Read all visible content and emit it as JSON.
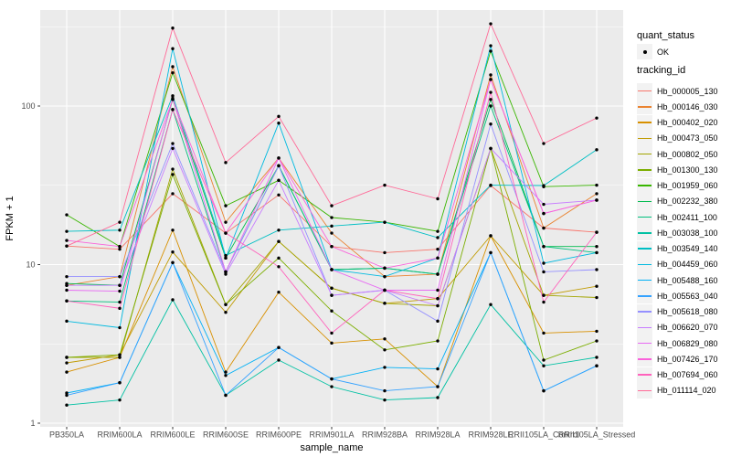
{
  "chart_data": {
    "type": "line",
    "title": "",
    "xlabel": "sample_name",
    "ylabel": "FPKM + 1",
    "y_scale": "log10",
    "y_ticks": [
      1,
      10,
      100
    ],
    "y_minor_ticks": [
      3.1623,
      31.623,
      316.23
    ],
    "ylim": [
      1,
      400
    ],
    "grid": "major+minor, white on grey panel",
    "legend_position": "right",
    "panel_bg": "#EBEBEB",
    "grid_color": "#FFFFFF",
    "key_bg": "#F2F2F2",
    "tick_text_color": "#4D4D4D",
    "point_color": "#000000",
    "categories": [
      "PB350LA",
      "RRIM600LA",
      "RRIM600LE",
      "RRIM600SE",
      "RRIM600PE",
      "RRIM901LA",
      "RRIM928BA",
      "RRIM928LA",
      "RRIM928LE",
      "RRII105LA_Control",
      "RRII105LA_Stressed"
    ],
    "series": [
      {
        "name": "Hb_000005_130",
        "color": "#F8766D",
        "values": [
          13.1,
          12.5,
          28,
          15.8,
          27.5,
          13,
          11.9,
          12.5,
          31.5,
          17,
          16
        ]
      },
      {
        "name": "Hb_000146_030",
        "color": "#EA8331",
        "values": [
          7.4,
          8.4,
          177,
          18.5,
          47,
          15.8,
          8.4,
          8.7,
          157,
          17,
          28
        ]
      },
      {
        "name": "Hb_000402_020",
        "color": "#D89000",
        "values": [
          2.1,
          2.6,
          16.5,
          2.1,
          6.7,
          3.2,
          3.4,
          1.7,
          15.2,
          3.7,
          3.8
        ]
      },
      {
        "name": "Hb_000473_050",
        "color": "#C09B00",
        "values": [
          2.4,
          2.7,
          12,
          5.0,
          14,
          7.1,
          5.7,
          6.1,
          15.2,
          6.4,
          7.3
        ]
      },
      {
        "name": "Hb_000802_050",
        "color": "#A3A500",
        "values": [
          2.6,
          2.6,
          40,
          5.6,
          14,
          7.1,
          5.7,
          5.5,
          54,
          6.4,
          6.2
        ]
      },
      {
        "name": "Hb_001300_130",
        "color": "#7CAE00",
        "values": [
          2.6,
          2.7,
          37,
          5.6,
          11,
          5.1,
          2.9,
          3.3,
          54,
          2.5,
          3.3
        ]
      },
      {
        "name": "Hb_001959_060",
        "color": "#39B600",
        "values": [
          20.6,
          13,
          162,
          23.5,
          34,
          19.8,
          18.5,
          16.2,
          222,
          31,
          31.7
        ]
      },
      {
        "name": "Hb_002232_380",
        "color": "#00BB4E",
        "values": [
          7.6,
          7.4,
          110,
          11,
          42,
          9.3,
          9.5,
          8.7,
          110,
          13,
          13
        ]
      },
      {
        "name": "Hb_002411_100",
        "color": "#00BF7D",
        "values": [
          5.9,
          5.8,
          95,
          9,
          42,
          9.3,
          9.5,
          8.7,
          100,
          13,
          11.9
        ]
      },
      {
        "name": "Hb_003038_100",
        "color": "#00C1A3",
        "values": [
          1.3,
          1.4,
          6.0,
          1.5,
          2.5,
          1.7,
          1.4,
          1.45,
          5.6,
          2.3,
          2.6
        ]
      },
      {
        "name": "Hb_003549_140",
        "color": "#00BFC4",
        "values": [
          16.2,
          16.5,
          116,
          11.4,
          16.5,
          17.5,
          18.5,
          14.8,
          31.7,
          31.5,
          53
        ]
      },
      {
        "name": "Hb_004459_060",
        "color": "#00BAE0",
        "values": [
          4.4,
          4.0,
          230,
          11,
          78,
          9.3,
          8.4,
          11,
          240,
          10.2,
          11.9
        ]
      },
      {
        "name": "Hb_005488_160",
        "color": "#00B0F6",
        "values": [
          1.55,
          1.8,
          10.3,
          2.0,
          3.0,
          1.9,
          2.25,
          2.2,
          11.9,
          1.6,
          2.3
        ]
      },
      {
        "name": "Hb_005563_040",
        "color": "#35A2FF",
        "values": [
          1.5,
          1.8,
          10.3,
          1.5,
          3.0,
          1.9,
          1.6,
          1.7,
          11.9,
          1.6,
          2.3
        ]
      },
      {
        "name": "Hb_005618_080",
        "color": "#9590FF",
        "values": [
          8.4,
          8.4,
          58,
          9,
          42,
          6.4,
          6.9,
          4.4,
          77,
          9.0,
          9.3
        ]
      },
      {
        "name": "Hb_006620_070",
        "color": "#C77CFF",
        "values": [
          7.4,
          7.4,
          54,
          8.7,
          34,
          6.4,
          6.9,
          5.5,
          54,
          24,
          25.5
        ]
      },
      {
        "name": "Hb_006829_080",
        "color": "#E76BF3",
        "values": [
          6.9,
          6.8,
          112,
          9,
          47,
          9.3,
          6.9,
          6.9,
          147,
          21,
          25.5
        ]
      },
      {
        "name": "Hb_007426_170",
        "color": "#FA62DB",
        "values": [
          14.2,
          13,
          110,
          15.8,
          47,
          13,
          9.5,
          11,
          147,
          21,
          25.5
        ]
      },
      {
        "name": "Hb_007694_060",
        "color": "#FF62BC",
        "values": [
          5.9,
          5.3,
          95,
          15.8,
          9.7,
          3.7,
          6.9,
          6.1,
          122,
          5.8,
          16
        ]
      },
      {
        "name": "Hb_011114_020",
        "color": "#FF6A98",
        "values": [
          13.1,
          18.5,
          310,
          44,
          86,
          23.5,
          31.7,
          26,
          330,
          58,
          84
        ]
      }
    ]
  },
  "legend": {
    "quant_status_title": "quant_status",
    "ok_label": "OK",
    "tracking_id_title": "tracking_id"
  }
}
